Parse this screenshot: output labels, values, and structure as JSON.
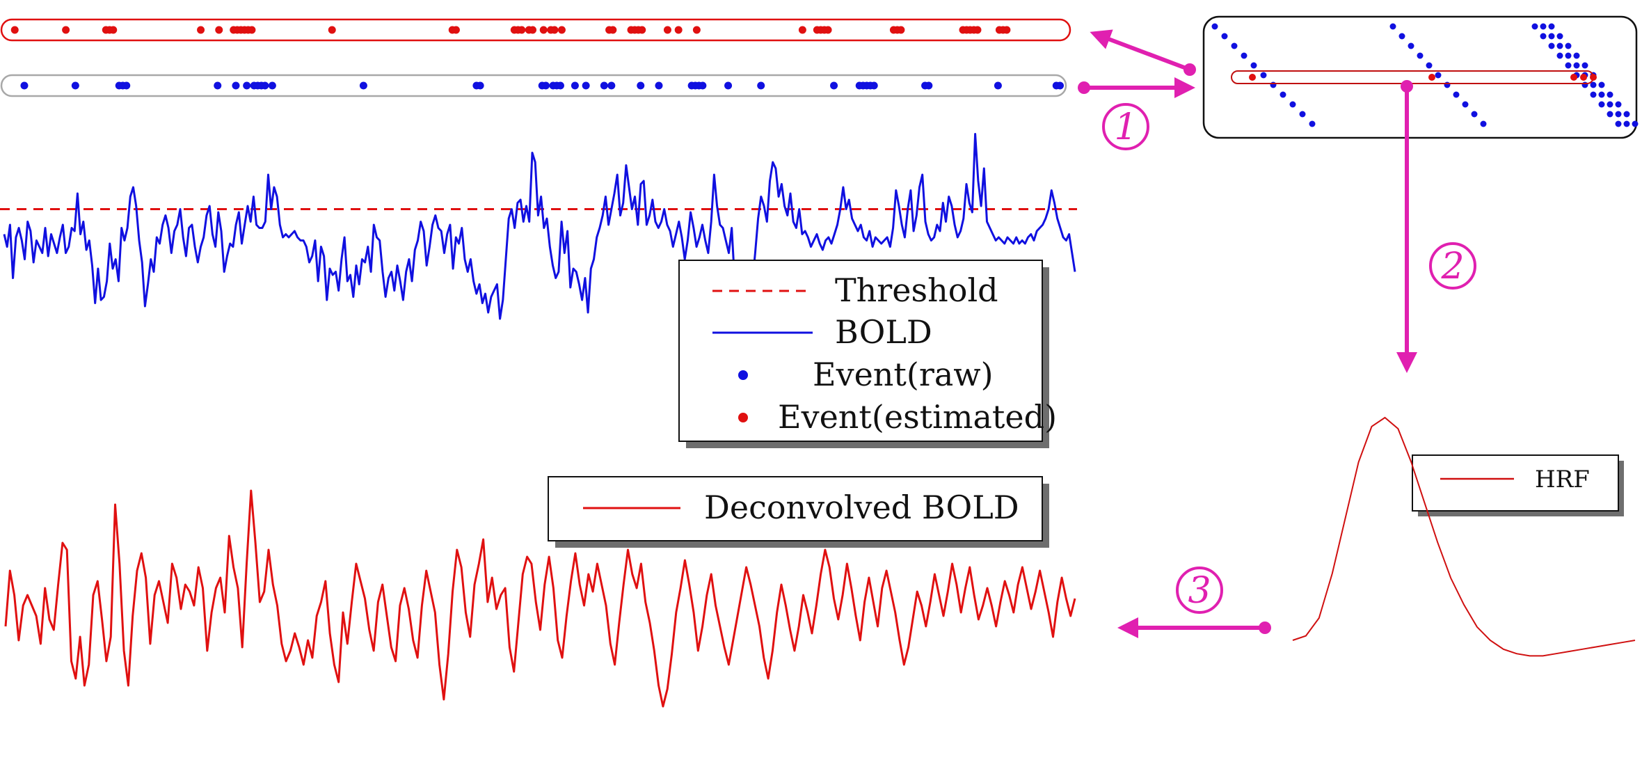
{
  "colors": {
    "bold": "#1010e0",
    "deconvolved": "#e01010",
    "threshold": "#e01010",
    "event_raw": "#1010e0",
    "event_estimated": "#e01010",
    "arrow": "#e020b0",
    "hrf": "#d01010"
  },
  "legend_main": {
    "threshold": "Threshold",
    "bold": "BOLD",
    "event_raw": "Event(raw)",
    "event_estimated": "Event(estimated)"
  },
  "legend_deconv": {
    "deconvolved": "Deconvolved BOLD"
  },
  "legend_hrf": {
    "hrf": "HRF"
  },
  "steps": [
    "1",
    "2",
    "3"
  ],
  "icons": {
    "arrow": "arrow-icon",
    "step_marker": "circled-number-icon"
  },
  "chart_data": [
    {
      "type": "line",
      "series": [
        {
          "name": "BOLD",
          "values": [
            0.15,
            -0.05,
            0.3,
            -0.55,
            0.1,
            0.25,
            0.05,
            -0.25,
            0.35,
            0.2,
            -0.3,
            0.05,
            -0.05,
            -0.15,
            0.25,
            -0.2,
            0.15,
            0.0,
            -0.15,
            0.1,
            0.3,
            -0.15,
            -0.05,
            0.25,
            0.2,
            0.8,
            0.15,
            0.35,
            -0.1,
            0.05,
            -0.35,
            -0.95,
            -0.4,
            -0.9,
            -0.85,
            -0.6,
            0.0,
            -0.4,
            -0.25,
            -0.6,
            0.25,
            0.05,
            0.25,
            0.75,
            0.9,
            0.6,
            0.05,
            -0.3,
            -1.0,
            -0.65,
            -0.25,
            -0.45,
            0.1,
            0.0,
            0.3,
            0.45,
            0.25,
            -0.15,
            0.2,
            0.3,
            0.55,
            0.1,
            -0.2,
            0.25,
            0.3,
            -0.05,
            -0.3,
            -0.05,
            0.1,
            0.45,
            0.6,
            0.15,
            -0.05,
            0.5,
            0.2,
            -0.45,
            -0.2,
            0.0,
            -0.05,
            0.3,
            0.5,
            0.0,
            0.3,
            0.6,
            0.35,
            0.75,
            0.3,
            0.25,
            0.25,
            0.35,
            1.1,
            0.55,
            0.9,
            0.75,
            0.3,
            0.1,
            0.15,
            0.1,
            0.15,
            0.2,
            0.1,
            0.05,
            0.05,
            -0.05,
            -0.3,
            -0.2,
            0.05,
            -0.6,
            -0.05,
            -0.2,
            -0.9,
            -0.4,
            -0.5,
            -0.45,
            -0.75,
            -0.25,
            0.1,
            -0.6,
            -0.5,
            -0.85,
            -0.35,
            -0.65,
            -0.25,
            -0.3,
            -0.05,
            -0.45,
            0.3,
            0.1,
            0.05,
            -0.45,
            -0.85,
            -0.55,
            -0.45,
            -0.75,
            -0.35,
            -0.6,
            -0.9,
            -0.45,
            -0.25,
            -0.6,
            -0.1,
            0.05,
            0.35,
            0.2,
            -0.35,
            -0.05,
            0.3,
            0.45,
            0.25,
            0.2,
            -0.15,
            0.15,
            0.3,
            -0.4,
            0.1,
            0.0,
            0.25,
            -0.25,
            -0.45,
            -0.25,
            -0.6,
            -0.8,
            -0.65,
            -0.95,
            -0.8,
            -1.1,
            -0.85,
            -0.75,
            -0.65,
            -1.2,
            -0.9,
            -0.25,
            0.4,
            0.55,
            0.25,
            0.65,
            0.7,
            0.35,
            0.6,
            0.35,
            1.45,
            1.3,
            0.45,
            0.75,
            0.25,
            0.4,
            -0.05,
            -0.35,
            -0.55,
            -0.45,
            0.35,
            -0.15,
            0.2,
            -0.7,
            -0.4,
            -0.45,
            -0.65,
            -0.9,
            -0.55,
            -1.1,
            -0.4,
            -0.25,
            0.1,
            0.25,
            0.45,
            0.75,
            0.3,
            0.55,
            0.8,
            1.1,
            0.45,
            0.65,
            1.25,
            0.9,
            0.55,
            0.75,
            0.3,
            0.95,
            1.0,
            0.3,
            0.45,
            0.7,
            0.35,
            0.25,
            0.35,
            0.55,
            0.3,
            0.2,
            -0.05,
            0.15,
            0.35,
            0.1,
            -0.25,
            0.05,
            0.5,
            0.25,
            -0.05,
            0.1,
            0.3,
            0.05,
            -0.15,
            0.35,
            1.1,
            0.6,
            0.3,
            0.25,
            0.05,
            -0.15,
            0.25,
            -0.6,
            -1.15,
            -0.95,
            -1.6,
            -1.2,
            -1.45,
            -0.65,
            -0.15,
            0.4,
            0.75,
            0.6,
            0.35,
            1.0,
            1.3,
            1.2,
            0.75,
            0.95,
            0.6,
            0.45,
            0.8,
            0.35,
            0.25,
            0.55,
            0.15,
            0.2,
            0.1,
            -0.05,
            0.05,
            0.15,
            0.0,
            -0.1,
            0.05,
            0.1,
            0.0,
            0.15,
            0.3,
            0.55,
            0.9,
            0.55,
            0.7,
            0.4,
            0.3,
            0.2,
            0.3,
            0.1,
            0.05,
            0.2,
            -0.05,
            0.1,
            0.05,
            0.0,
            0.05,
            0.1,
            -0.05,
            0.25,
            0.85,
            0.6,
            0.3,
            0.1,
            0.55,
            0.85,
            0.2,
            0.45,
            0.9,
            1.1,
            0.35,
            0.15,
            0.05,
            0.1,
            0.3,
            0.2,
            0.65,
            0.35,
            0.75,
            0.6,
            0.3,
            0.1,
            0.2,
            0.4,
            0.95,
            0.65,
            0.5,
            1.75,
            1.0,
            0.6,
            1.2,
            0.35,
            0.25,
            0.15,
            0.05,
            0.1,
            0.05,
            0.0,
            0.1,
            0.05,
            0.0,
            0.1,
            0.0,
            0.05,
            0.0,
            0.1,
            0.15,
            0.05,
            0.2,
            0.25,
            0.3,
            0.4,
            0.55,
            0.85,
            0.65,
            0.4,
            0.25,
            0.1,
            0.05,
            0.15,
            -0.15,
            -0.45
          ]
        },
        {
          "name": "Threshold",
          "values": [
            0.55
          ]
        }
      ]
    },
    {
      "type": "line",
      "series": [
        {
          "name": "Deconvolved BOLD",
          "values": [
            0.0,
            0.8,
            0.45,
            -0.2,
            0.3,
            0.45,
            0.3,
            0.15,
            -0.25,
            0.55,
            0.1,
            -0.05,
            0.6,
            1.2,
            1.1,
            -0.5,
            -0.75,
            -0.15,
            -0.85,
            -0.55,
            0.45,
            0.65,
            0.1,
            -0.5,
            -0.15,
            1.75,
            0.9,
            -0.35,
            -0.85,
            0.15,
            0.8,
            1.05,
            0.7,
            -0.25,
            0.45,
            0.65,
            0.35,
            0.05,
            0.9,
            0.7,
            0.25,
            0.6,
            0.5,
            0.3,
            0.85,
            0.55,
            -0.35,
            0.2,
            0.55,
            0.7,
            0.2,
            1.3,
            0.85,
            0.55,
            -0.3,
            0.9,
            1.95,
            1.2,
            0.35,
            0.5,
            1.1,
            0.6,
            0.3,
            -0.25,
            -0.5,
            -0.35,
            -0.1,
            -0.3,
            -0.55,
            -0.2,
            -0.45,
            0.15,
            0.35,
            0.65,
            -0.1,
            -0.55,
            -0.8,
            0.2,
            -0.25,
            0.35,
            0.9,
            0.65,
            0.4,
            -0.05,
            -0.35,
            0.35,
            0.6,
            0.15,
            -0.3,
            -0.5,
            0.3,
            0.55,
            0.25,
            -0.2,
            -0.45,
            0.3,
            0.8,
            0.5,
            0.2,
            -0.55,
            -1.05,
            -0.4,
            0.5,
            1.1,
            0.85,
            0.2,
            -0.15,
            0.6,
            0.9,
            1.25,
            0.35,
            0.7,
            0.25,
            0.45,
            0.55,
            -0.3,
            -0.65,
            0.05,
            0.75,
            1.0,
            0.9,
            0.35,
            -0.05,
            0.6,
            1.0,
            0.55,
            -0.2,
            -0.45,
            0.15,
            0.65,
            1.05,
            0.6,
            0.3,
            0.75,
            0.5,
            0.9,
            0.6,
            0.3,
            -0.25,
            -0.55,
            0.05,
            0.6,
            1.1,
            0.75,
            0.55,
            0.9,
            0.35,
            0.05,
            -0.35,
            -0.85,
            -1.15,
            -0.9,
            -0.4,
            0.2,
            0.55,
            0.95,
            0.6,
            0.2,
            -0.35,
            0.0,
            0.45,
            0.75,
            0.3,
            0.0,
            -0.3,
            -0.55,
            -0.2,
            0.15,
            0.5,
            0.85,
            0.6,
            0.3,
            0.0,
            -0.45,
            -0.75,
            -0.35,
            0.2,
            0.6,
            0.3,
            -0.05,
            -0.35,
            0.0,
            0.45,
            0.2,
            -0.1,
            0.3,
            0.75,
            1.1,
            0.85,
            0.4,
            0.1,
            0.45,
            0.9,
            0.55,
            0.15,
            -0.2,
            0.35,
            0.7,
            0.35,
            0.0,
            0.55,
            0.8,
            0.5,
            0.2,
            -0.2,
            -0.55,
            -0.3,
            0.1,
            0.5,
            0.3,
            0.0,
            0.35,
            0.75,
            0.45,
            0.15,
            0.5,
            0.9,
            0.6,
            0.2,
            0.55,
            0.85,
            0.45,
            0.1,
            0.3,
            0.55,
            0.3,
            0.0,
            0.35,
            0.65,
            0.45,
            0.2,
            0.6,
            0.85,
            0.55,
            0.25,
            0.5,
            0.8,
            0.5,
            0.2,
            -0.15,
            0.35,
            0.7,
            0.4,
            0.15,
            0.4
          ]
        }
      ]
    },
    {
      "type": "line",
      "series": [
        {
          "name": "HRF",
          "values": [
            0.0,
            0.02,
            0.1,
            0.3,
            0.55,
            0.8,
            0.96,
            1.0,
            0.95,
            0.8,
            0.62,
            0.44,
            0.28,
            0.16,
            0.06,
            0.0,
            -0.04,
            -0.06,
            -0.07,
            -0.07,
            -0.06,
            -0.05,
            -0.04,
            -0.03,
            -0.02,
            -0.01,
            0.0
          ]
        }
      ]
    },
    {
      "type": "scatter",
      "series": [
        {
          "name": "Event(raw)",
          "x": [
            4,
            18,
            30,
            31,
            32,
            57,
            62,
            65,
            67,
            68,
            69,
            70,
            72,
            97,
            128,
            129,
            146,
            147,
            149,
            150,
            151,
            155,
            158,
            163,
            165,
            173,
            178,
            187,
            188,
            189,
            190,
            197,
            206,
            226,
            233,
            234,
            235,
            236,
            237,
            251,
            252,
            271,
            287,
            288
          ]
        },
        {
          "name": "Event(estimated)",
          "x": [
            1,
            15,
            26,
            27,
            28,
            52,
            57,
            61,
            62,
            63,
            64,
            65,
            66,
            88,
            121,
            122,
            138,
            139,
            140,
            142,
            143,
            146,
            148,
            149,
            151,
            164,
            165,
            170,
            171,
            172,
            173,
            180,
            183,
            188,
            217,
            221,
            222,
            223,
            224,
            242,
            243,
            244,
            261,
            262,
            263,
            264,
            265,
            271,
            272,
            273
          ]
        }
      ]
    }
  ]
}
